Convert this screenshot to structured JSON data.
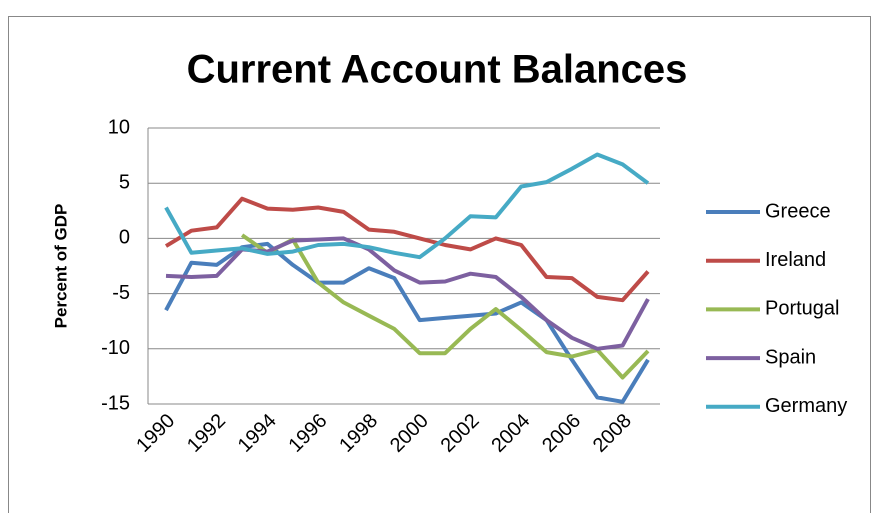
{
  "chart_data": {
    "type": "line",
    "title": "Current Account Balances",
    "y_label": "Percent of GDP",
    "categories": [
      "1990",
      null,
      "1992",
      null,
      "1994",
      null,
      "1996",
      null,
      "1998",
      null,
      "2000",
      null,
      "2002",
      null,
      "2004",
      null,
      "2006",
      null,
      "2008",
      null
    ],
    "series": [
      {
        "name": "Greece",
        "color": "#4a7ebb",
        "values": [
          -6.5,
          -2.2,
          -2.4,
          -0.8,
          -0.5,
          -2.4,
          -4.0,
          -4.0,
          -2.7,
          -3.6,
          -7.4,
          -7.2,
          -7.0,
          -6.8,
          -5.8,
          -7.4,
          -11.0,
          -14.4,
          -14.8,
          -11.0
        ]
      },
      {
        "name": "Ireland",
        "color": "#be4b48",
        "values": [
          -0.7,
          0.7,
          1.0,
          3.6,
          2.7,
          2.6,
          2.8,
          2.4,
          0.8,
          0.6,
          0.0,
          -0.6,
          -1.0,
          0.0,
          -0.6,
          -3.5,
          -3.6,
          -5.3,
          -5.6,
          -3.0
        ]
      },
      {
        "name": "Portugal",
        "color": "#98b954",
        "values": [
          null,
          null,
          null,
          0.3,
          -1.3,
          -0.1,
          -4.0,
          -5.8,
          -7.0,
          -8.2,
          -10.4,
          -10.4,
          -8.2,
          -6.4,
          -8.3,
          -10.3,
          -10.7,
          -10.1,
          -12.6,
          -10.2
        ]
      },
      {
        "name": "Spain",
        "color": "#7d60a0",
        "values": [
          -3.4,
          -3.5,
          -3.4,
          -1.0,
          -1.2,
          -0.2,
          -0.1,
          0.0,
          -1.0,
          -2.9,
          -4.0,
          -3.9,
          -3.2,
          -3.5,
          -5.3,
          -7.4,
          -9.0,
          -10.0,
          -9.7,
          -5.5
        ]
      },
      {
        "name": "Germany",
        "color": "#46aac5",
        "values": [
          2.8,
          -1.3,
          -1.1,
          -0.9,
          -1.4,
          -1.2,
          -0.6,
          -0.5,
          -0.8,
          -1.3,
          -1.7,
          0.0,
          2.0,
          1.9,
          4.7,
          5.1,
          6.3,
          7.6,
          6.7,
          5.0
        ]
      }
    ],
    "ylim": [
      -15,
      10
    ],
    "yticks": [
      -15,
      -10,
      -5,
      0,
      5,
      10
    ],
    "grid": true,
    "legend": "right"
  }
}
